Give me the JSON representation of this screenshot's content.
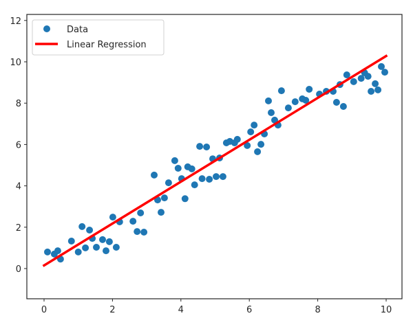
{
  "chart_data": {
    "type": "scatter",
    "title": "",
    "xlabel": "",
    "ylabel": "",
    "xlim": [
      -0.5,
      10.5
    ],
    "ylim": [
      -1.45,
      12.3
    ],
    "grid": false,
    "legend_position": "upper left",
    "x_ticks": [
      0,
      2,
      4,
      6,
      8,
      10
    ],
    "x_tick_labels": [
      "0",
      "2",
      "4",
      "6",
      "8",
      "10"
    ],
    "y_ticks": [
      0,
      2,
      4,
      6,
      8,
      10,
      12
    ],
    "y_tick_labels": [
      "0",
      "2",
      "4",
      "6",
      "8",
      "10",
      "12"
    ],
    "legend": [
      "Data",
      "Linear Regression"
    ],
    "series": [
      {
        "name": "Data",
        "kind": "scatter",
        "color": "#1f77b4",
        "x": [
          0.1,
          0.3,
          0.4,
          0.48,
          0.8,
          1.0,
          1.11,
          1.21,
          1.33,
          1.41,
          1.53,
          1.71,
          1.81,
          1.91,
          2.01,
          2.11,
          2.21,
          2.6,
          2.72,
          2.82,
          2.92,
          3.22,
          3.32,
          3.42,
          3.52,
          3.64,
          3.82,
          3.92,
          4.02,
          4.12,
          4.2,
          4.32,
          4.4,
          4.55,
          4.62,
          4.75,
          4.83,
          4.93,
          5.03,
          5.13,
          5.23,
          5.33,
          5.43,
          5.57,
          5.65,
          5.94,
          6.04,
          6.14,
          6.24,
          6.34,
          6.44,
          6.56,
          6.64,
          6.74,
          6.84,
          6.94,
          7.14,
          7.34,
          7.55,
          7.65,
          7.75,
          8.05,
          8.25,
          8.45,
          8.55,
          8.65,
          8.75,
          8.85,
          9.05,
          9.27,
          9.37,
          9.47,
          9.56,
          9.68,
          9.76,
          9.86,
          9.96
        ],
        "y": [
          0.8,
          0.7,
          0.86,
          0.46,
          1.33,
          0.8,
          2.03,
          1.0,
          1.86,
          1.46,
          1.03,
          1.4,
          0.86,
          1.3,
          2.49,
          1.03,
          2.26,
          2.29,
          1.79,
          2.69,
          1.76,
          4.52,
          3.32,
          2.72,
          3.42,
          4.15,
          5.22,
          4.85,
          4.35,
          3.38,
          4.92,
          4.82,
          4.05,
          5.91,
          4.35,
          5.88,
          4.32,
          5.31,
          4.45,
          5.35,
          4.45,
          6.08,
          6.15,
          6.08,
          6.25,
          5.95,
          6.61,
          6.94,
          5.65,
          6.01,
          6.51,
          8.11,
          7.54,
          7.18,
          6.94,
          8.6,
          7.77,
          8.07,
          8.21,
          8.14,
          8.67,
          8.44,
          8.57,
          8.57,
          8.04,
          8.9,
          7.84,
          9.37,
          9.04,
          9.2,
          9.47,
          9.3,
          8.57,
          8.94,
          8.64,
          9.77,
          9.5
        ]
      },
      {
        "name": "Linear Regression",
        "kind": "line",
        "color": "#ff0000",
        "x": [
          0,
          10
        ],
        "y": [
          0.15,
          10.28
        ]
      }
    ]
  }
}
